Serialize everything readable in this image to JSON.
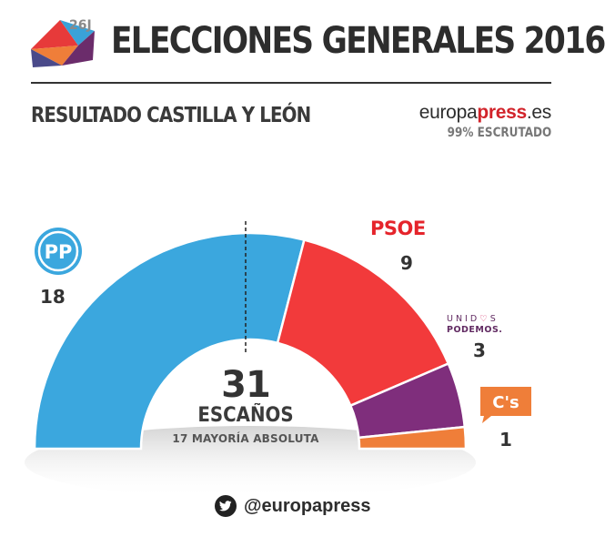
{
  "header": {
    "title": "ELECCIONES GENERALES 2016",
    "subtitle": "RESULTADO CASTILLA Y LEÓN",
    "logo_tag": "26J",
    "brand_part1": "europa",
    "brand_part2": "press",
    "brand_part3": ".es",
    "scrutiny": "99% ESCRUTADO"
  },
  "center": {
    "total": "31",
    "total_label": "ESCAÑOS",
    "majority": "17 MAYORÍA ABSOLUTA"
  },
  "parties": {
    "pp": {
      "logo_text": "PP"
    },
    "psoe": {
      "logo_text": "PSOE"
    },
    "up": {
      "logo_line1": "UNID",
      "logo_heart": "♡",
      "logo_line1b": "S",
      "logo_line2": "PODEMOS."
    },
    "cs": {
      "logo_text": "C's"
    }
  },
  "footer": {
    "handle": "@europapress"
  },
  "chart_data": {
    "type": "pie",
    "variant": "half-donut (parliament)",
    "title": "ELECCIONES GENERALES 2016",
    "subtitle": "RESULTADO CASTILLA Y LEÓN",
    "total_seats": 31,
    "majority": 17,
    "series": [
      {
        "name": "PP",
        "value": 18,
        "color": "#3ba7de"
      },
      {
        "name": "PSOE",
        "value": 9,
        "color": "#f23a3b"
      },
      {
        "name": "UNIDOS PODEMOS",
        "value": 3,
        "color": "#7f2e7c"
      },
      {
        "name": "C's",
        "value": 1,
        "color": "#ef7e39"
      }
    ]
  }
}
